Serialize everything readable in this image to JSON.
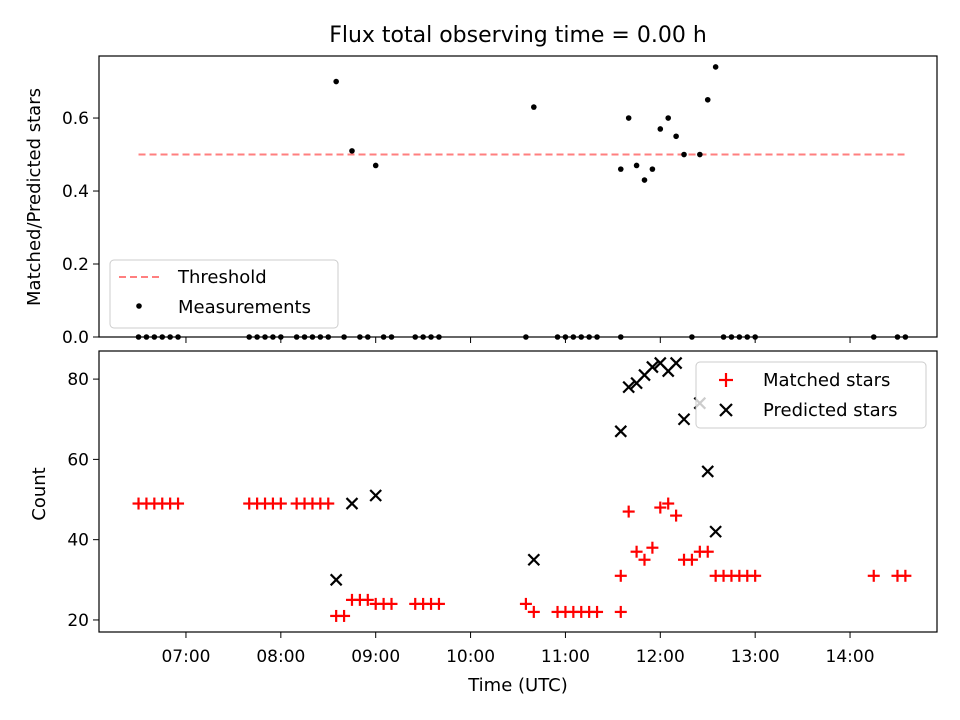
{
  "chart_data": [
    {
      "type": "scatter",
      "title": "Flux total observing time = 0.00 h",
      "xlabel": "",
      "ylabel": "Matched/Predicted stars",
      "ylim": [
        0,
        0.77
      ],
      "yticks": [
        0.0,
        0.2,
        0.4,
        0.6
      ],
      "ytick_labels": [
        "0.0",
        "0.2",
        "0.4",
        "0.6"
      ],
      "legend": {
        "placement": "lower-left",
        "entries": [
          {
            "label": "Threshold",
            "style": "dashed-line",
            "color": "#ff7f7f"
          },
          {
            "label": "Measurements",
            "style": "dot",
            "color": "#000000"
          }
        ]
      },
      "threshold": {
        "value": 0.5,
        "x": [
          "06:30",
          "14:35"
        ],
        "color": "#ff7f7f"
      },
      "series": [
        {
          "name": "Measurements",
          "color": "#000000",
          "points": [
            [
              "06:30",
              0.0
            ],
            [
              "06:35",
              0.0
            ],
            [
              "06:40",
              0.0
            ],
            [
              "06:45",
              0.0
            ],
            [
              "06:50",
              0.0
            ],
            [
              "06:55",
              0.0
            ],
            [
              "07:40",
              0.0
            ],
            [
              "07:45",
              0.0
            ],
            [
              "07:50",
              0.0
            ],
            [
              "07:55",
              0.0
            ],
            [
              "08:00",
              0.0
            ],
            [
              "08:10",
              0.0
            ],
            [
              "08:15",
              0.0
            ],
            [
              "08:20",
              0.0
            ],
            [
              "08:25",
              0.0
            ],
            [
              "08:30",
              0.0
            ],
            [
              "08:35",
              0.7
            ],
            [
              "08:40",
              0.0
            ],
            [
              "08:45",
              0.51
            ],
            [
              "08:50",
              0.0
            ],
            [
              "08:55",
              0.0
            ],
            [
              "09:00",
              0.47
            ],
            [
              "09:05",
              0.0
            ],
            [
              "09:10",
              0.0
            ],
            [
              "09:25",
              0.0
            ],
            [
              "09:30",
              0.0
            ],
            [
              "09:35",
              0.0
            ],
            [
              "09:40",
              0.0
            ],
            [
              "10:35",
              0.0
            ],
            [
              "10:40",
              0.63
            ],
            [
              "10:55",
              0.0
            ],
            [
              "11:00",
              0.0
            ],
            [
              "11:05",
              0.0
            ],
            [
              "11:10",
              0.0
            ],
            [
              "11:15",
              0.0
            ],
            [
              "11:20",
              0.0
            ],
            [
              "11:35",
              0.0
            ],
            [
              "11:35",
              0.46
            ],
            [
              "11:40",
              0.6
            ],
            [
              "11:45",
              0.47
            ],
            [
              "11:50",
              0.43
            ],
            [
              "11:55",
              0.46
            ],
            [
              "12:00",
              0.57
            ],
            [
              "12:05",
              0.6
            ],
            [
              "12:10",
              0.55
            ],
            [
              "12:15",
              0.5
            ],
            [
              "12:20",
              0.0
            ],
            [
              "12:25",
              0.5
            ],
            [
              "12:30",
              0.65
            ],
            [
              "12:35",
              0.74
            ],
            [
              "12:40",
              0.0
            ],
            [
              "12:45",
              0.0
            ],
            [
              "12:50",
              0.0
            ],
            [
              "12:55",
              0.0
            ],
            [
              "13:00",
              0.0
            ],
            [
              "14:15",
              0.0
            ],
            [
              "14:30",
              0.0
            ],
            [
              "14:35",
              0.0
            ]
          ]
        }
      ]
    },
    {
      "type": "scatter",
      "title": "",
      "xlabel": "Time (UTC)",
      "ylabel": "Count",
      "ylim": [
        17,
        87
      ],
      "yticks": [
        20,
        40,
        60,
        80
      ],
      "ytick_labels": [
        "20",
        "40",
        "60",
        "80"
      ],
      "xlim": [
        "06:05",
        "14:55"
      ],
      "xticks": [
        "07:00",
        "08:00",
        "09:00",
        "10:00",
        "11:00",
        "12:00",
        "13:00",
        "14:00"
      ],
      "legend": {
        "placement": "upper-right",
        "entries": [
          {
            "label": "Matched stars",
            "marker": "plus",
            "color": "#ff0000"
          },
          {
            "label": "Predicted stars",
            "marker": "x",
            "color": "#000000"
          }
        ]
      },
      "series": [
        {
          "name": "Matched stars",
          "marker": "plus",
          "color": "#ff0000",
          "points": [
            [
              "06:30",
              49
            ],
            [
              "06:35",
              49
            ],
            [
              "06:40",
              49
            ],
            [
              "06:45",
              49
            ],
            [
              "06:50",
              49
            ],
            [
              "06:55",
              49
            ],
            [
              "07:40",
              49
            ],
            [
              "07:45",
              49
            ],
            [
              "07:50",
              49
            ],
            [
              "07:55",
              49
            ],
            [
              "08:00",
              49
            ],
            [
              "08:10",
              49
            ],
            [
              "08:15",
              49
            ],
            [
              "08:20",
              49
            ],
            [
              "08:25",
              49
            ],
            [
              "08:30",
              49
            ],
            [
              "08:35",
              21
            ],
            [
              "08:40",
              21
            ],
            [
              "08:45",
              25
            ],
            [
              "08:50",
              25
            ],
            [
              "08:55",
              25
            ],
            [
              "09:00",
              24
            ],
            [
              "09:05",
              24
            ],
            [
              "09:10",
              24
            ],
            [
              "09:25",
              24
            ],
            [
              "09:30",
              24
            ],
            [
              "09:35",
              24
            ],
            [
              "09:40",
              24
            ],
            [
              "10:35",
              24
            ],
            [
              "10:40",
              22
            ],
            [
              "10:55",
              22
            ],
            [
              "11:00",
              22
            ],
            [
              "11:05",
              22
            ],
            [
              "11:10",
              22
            ],
            [
              "11:15",
              22
            ],
            [
              "11:20",
              22
            ],
            [
              "11:35",
              22
            ],
            [
              "11:35",
              31
            ],
            [
              "11:40",
              47
            ],
            [
              "11:45",
              37
            ],
            [
              "11:50",
              35
            ],
            [
              "11:55",
              38
            ],
            [
              "12:00",
              48
            ],
            [
              "12:05",
              49
            ],
            [
              "12:10",
              46
            ],
            [
              "12:15",
              35
            ],
            [
              "12:20",
              35
            ],
            [
              "12:25",
              37
            ],
            [
              "12:30",
              37
            ],
            [
              "12:35",
              31
            ],
            [
              "12:40",
              31
            ],
            [
              "12:45",
              31
            ],
            [
              "12:50",
              31
            ],
            [
              "12:55",
              31
            ],
            [
              "13:00",
              31
            ],
            [
              "14:15",
              31
            ],
            [
              "14:30",
              31
            ],
            [
              "14:35",
              31
            ]
          ]
        },
        {
          "name": "Predicted stars",
          "marker": "x",
          "color": "#000000",
          "points": [
            [
              "08:35",
              30
            ],
            [
              "08:45",
              49
            ],
            [
              "09:00",
              51
            ],
            [
              "10:40",
              35
            ],
            [
              "11:35",
              67
            ],
            [
              "11:40",
              78
            ],
            [
              "11:45",
              79
            ],
            [
              "11:50",
              81
            ],
            [
              "11:55",
              83
            ],
            [
              "12:00",
              84
            ],
            [
              "12:05",
              82
            ],
            [
              "12:10",
              84
            ],
            [
              "12:15",
              70
            ],
            [
              "12:25",
              74
            ],
            [
              "12:30",
              57
            ],
            [
              "12:35",
              42
            ]
          ]
        }
      ]
    }
  ]
}
